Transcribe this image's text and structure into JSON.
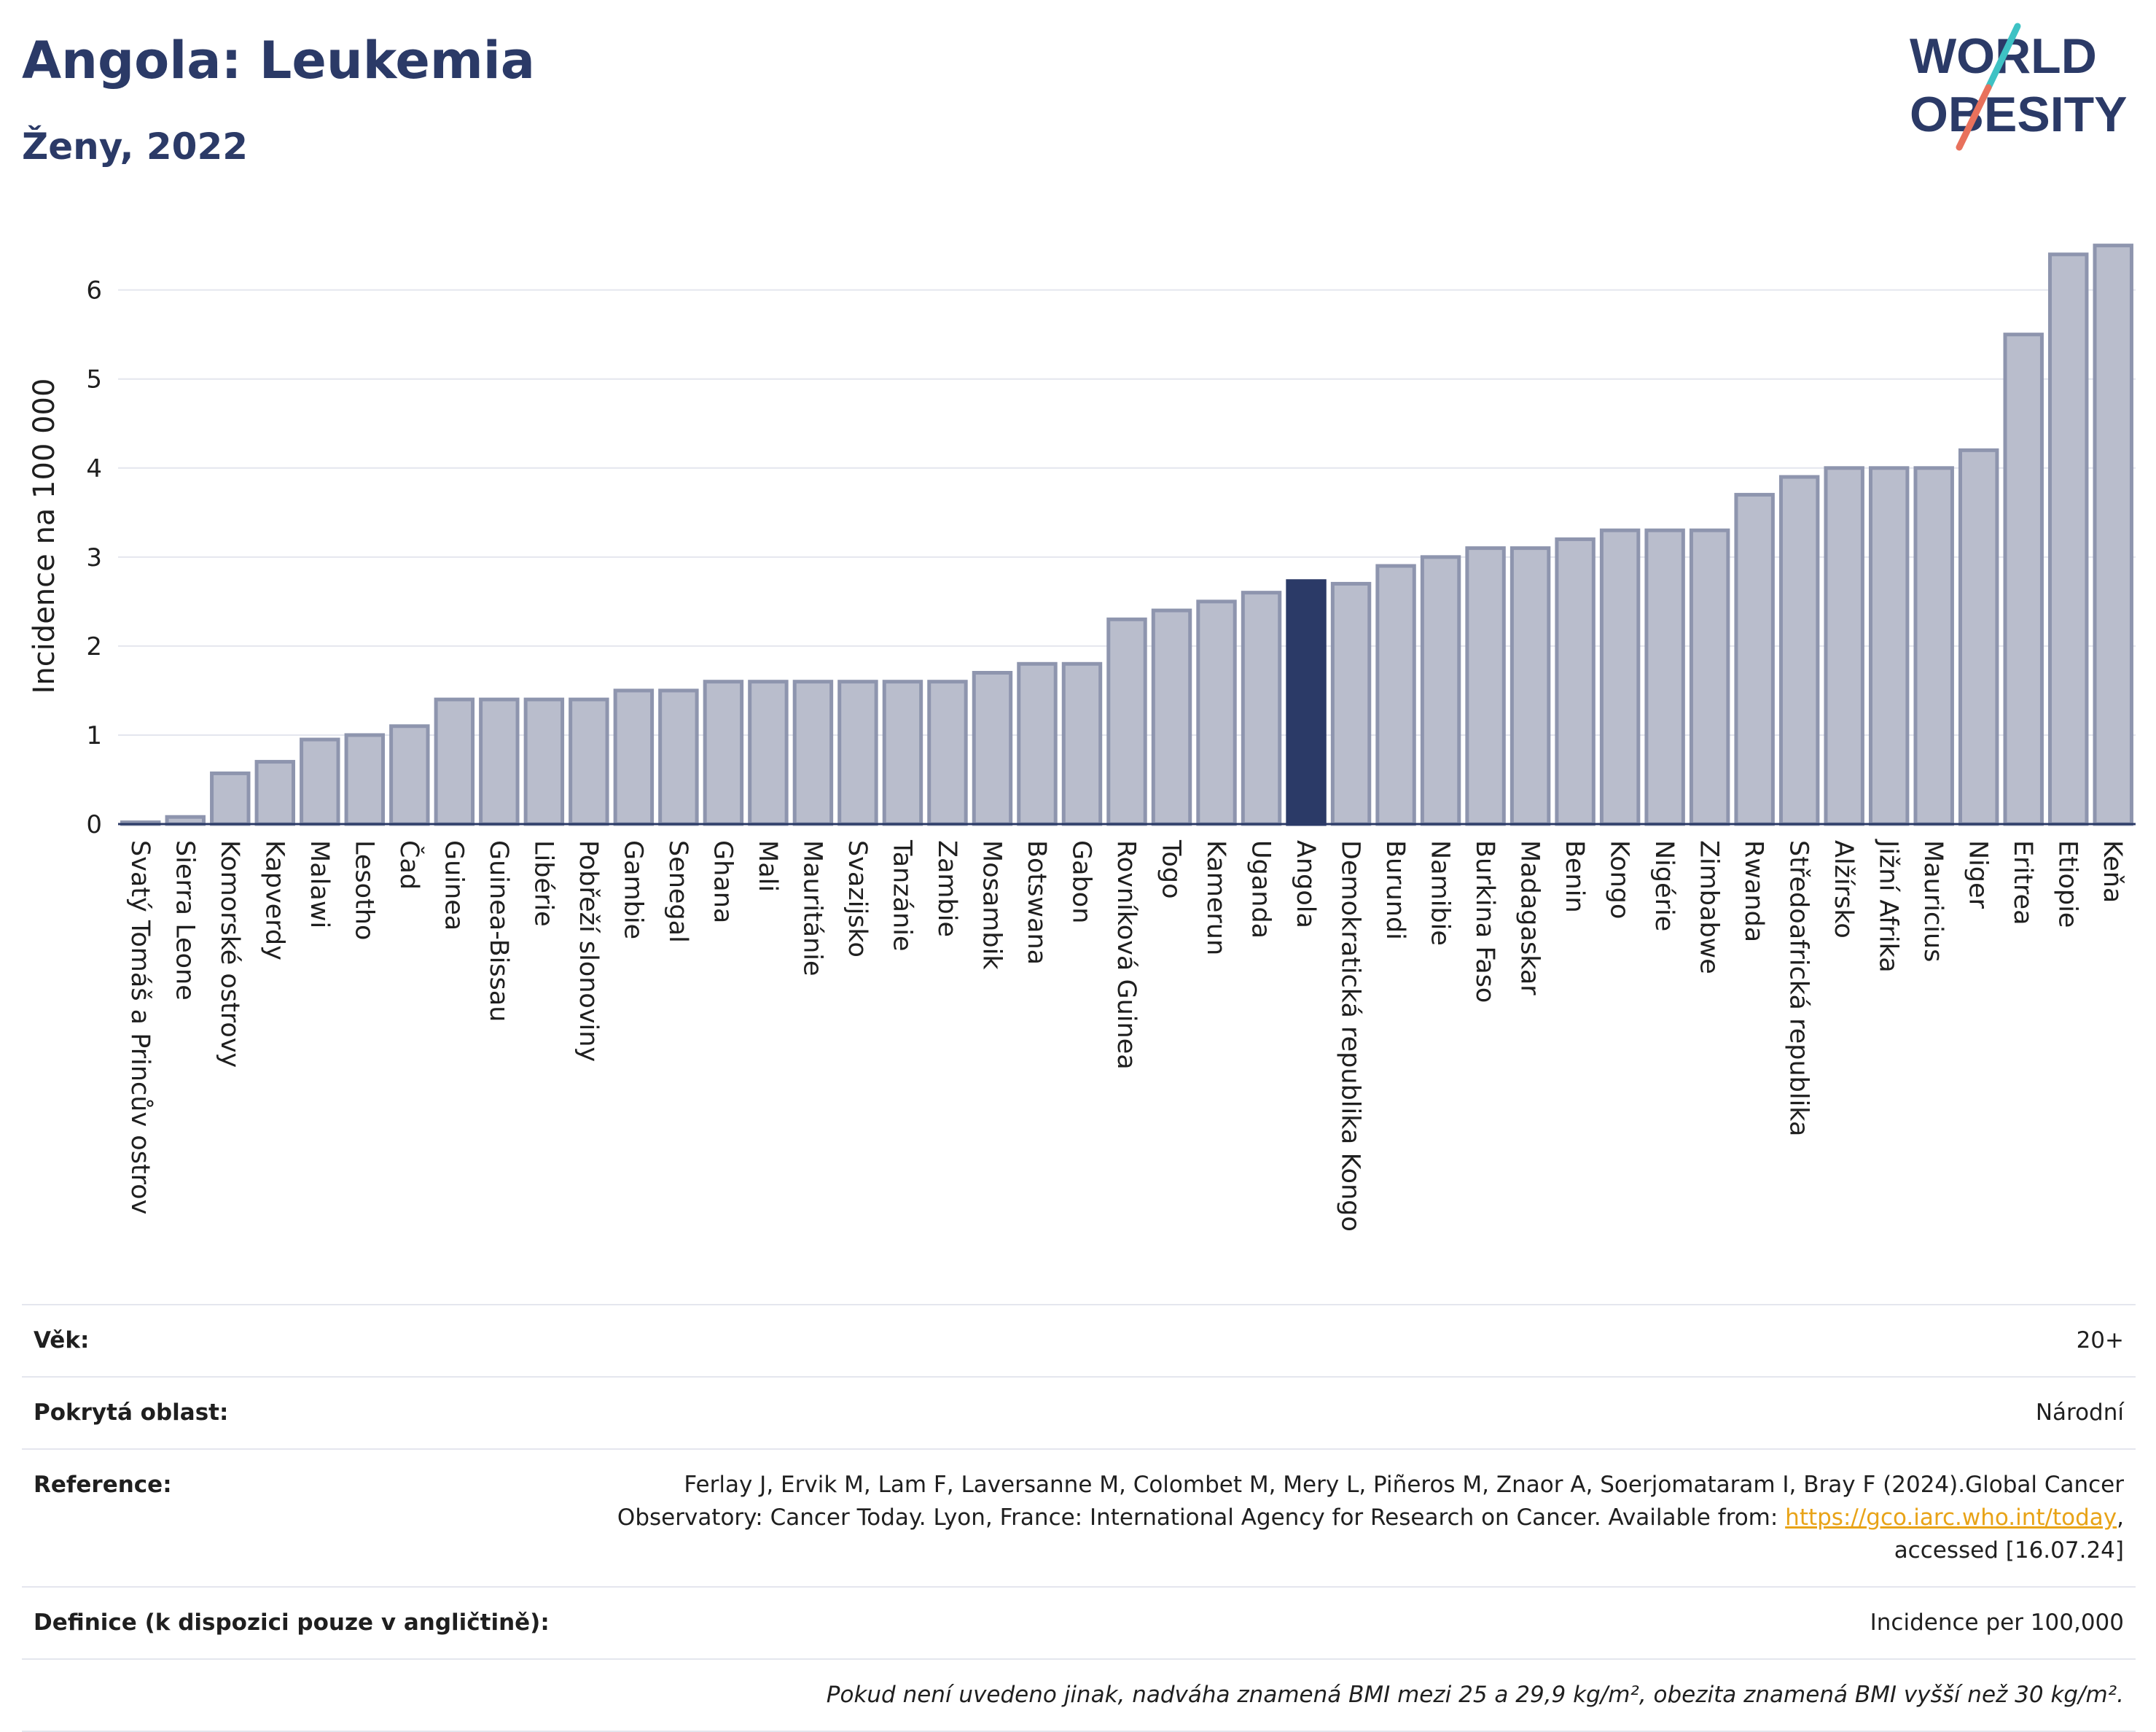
{
  "title": "Angola: Leukemia",
  "subtitle": "Ženy, 2022",
  "logo": {
    "line1": "WORLD",
    "line2": "OBESITY",
    "accent_colors": [
      "#3ec2c4",
      "#e8715c"
    ]
  },
  "colors": {
    "highlight": "#2b3a67",
    "bar_fill": "#b9bdcc",
    "bar_edge": "#8e95ae",
    "text_title": "#2b3a67"
  },
  "chart_data": {
    "type": "bar",
    "categories": [
      "Svatý Tomáš a Princův ostrov",
      "Sierra Leone",
      "Komorské ostrovy",
      "Kapverdy",
      "Malawi",
      "Lesotho",
      "Čad",
      "Guinea",
      "Guinea-Bissau",
      "Libérie",
      "Pobřeží slonoviny",
      "Gambie",
      "Senegal",
      "Ghana",
      "Mali",
      "Mauritánie",
      "Svazijsko",
      "Tanzánie",
      "Zambie",
      "Mosambik",
      "Botswana",
      "Gabon",
      "Rovníková Guinea",
      "Togo",
      "Kamerun",
      "Uganda",
      "Angola",
      "Demokratická republika Kongo",
      "Burundi",
      "Namibie",
      "Burkina Faso",
      "Madagaskar",
      "Benin",
      "Kongo",
      "Nigérie",
      "Zimbabwe",
      "Rwanda",
      "Středoafrická republika",
      "Alžírsko",
      "Jižní Afrika",
      "Mauricius",
      "Niger",
      "Eritrea",
      "Etiopie",
      "Keňa"
    ],
    "values": [
      0.02,
      0.08,
      0.57,
      0.7,
      0.95,
      1.0,
      1.1,
      1.4,
      1.4,
      1.4,
      1.4,
      1.5,
      1.5,
      1.6,
      1.6,
      1.6,
      1.6,
      1.6,
      1.6,
      1.7,
      1.8,
      1.8,
      2.3,
      2.4,
      2.5,
      2.6,
      2.73,
      2.7,
      2.9,
      3.0,
      3.1,
      3.1,
      3.2,
      3.3,
      3.3,
      3.3,
      3.7,
      3.9,
      4.0,
      4.0,
      4.0,
      4.2,
      5.5,
      6.4,
      6.5
    ],
    "highlight": "Angola",
    "ylabel": "Incidence na 100 000",
    "yticks": [
      0,
      1,
      2,
      3,
      4,
      5,
      6
    ],
    "ylim": [
      0,
      6.8
    ],
    "grid": true
  },
  "info": {
    "age_label": "Věk:",
    "age_value": "20+",
    "area_label": "Pokrytá oblast:",
    "area_value": "Národní",
    "reference_label": "Reference:",
    "reference_text": "Ferlay J, Ervik M, Lam F, Laversanne M, Colombet M, Mery L, Piñeros M, Znaor A, Soerjomataram I, Bray F (2024).Global Cancer Observatory: Cancer Today. Lyon, France: International Agency for Research on Cancer. Available from: ",
    "reference_link": "https://gco.iarc.who.int/today",
    "reference_tail": ", accessed [16.07.24]",
    "definition_label": "Definice (k dispozici pouze v angličtině):",
    "definition_value": "Incidence per 100,000",
    "note": "Pokud není uvedeno jinak, nadváha znamená BMI mezi 25 a 29,9 kg/m², obezita znamená BMI vyšší než 30 kg/m²."
  }
}
